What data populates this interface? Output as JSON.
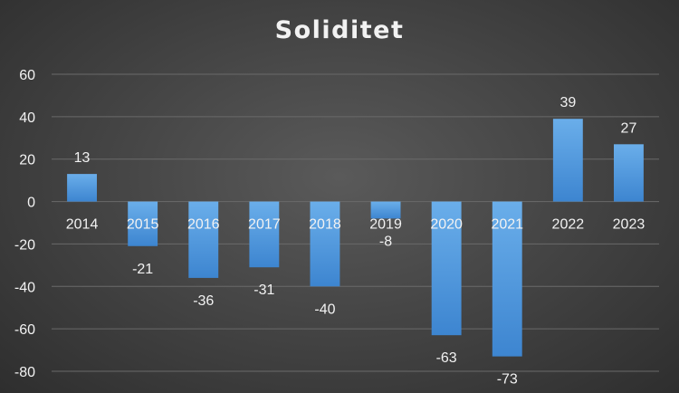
{
  "chart_data": {
    "type": "bar",
    "title": "Soliditet",
    "xlabel": "",
    "ylabel": "",
    "categories": [
      "2014",
      "2015",
      "2016",
      "2017",
      "2018",
      "2019",
      "2020",
      "2021",
      "2022",
      "2023"
    ],
    "values": [
      13,
      -21,
      -36,
      -31,
      -40,
      -8,
      -63,
      -73,
      39,
      27
    ],
    "data_labels": [
      "13",
      "-21",
      "-36",
      "-31",
      "-40",
      "-8",
      "-63",
      "-73",
      "39",
      "27"
    ],
    "yticks": [
      "60",
      "40",
      "20",
      "0",
      "-20",
      "-40",
      "-60",
      "-80"
    ],
    "ylim": [
      -80,
      60
    ],
    "grid": true,
    "legend": "none",
    "colors": {
      "bar_top": "#6aaeea",
      "bar_bottom": "#3d85d0",
      "background": "#4a4a4a",
      "grid": "#6a6a6a"
    }
  }
}
